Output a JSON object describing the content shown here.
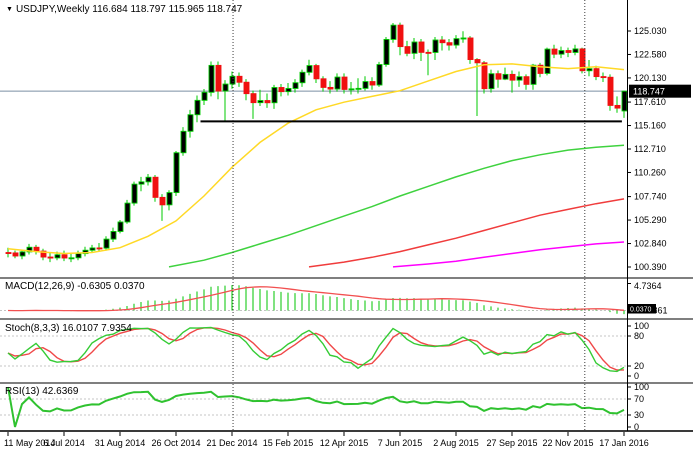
{
  "header": {
    "title": "USDJPY,Weekly  116.684 118.797 115.965 118.747",
    "dropdown_icon": "symbol-list-dropdown"
  },
  "colors": {
    "bull_body": "#000000",
    "bear_body": "#f01010",
    "candle_outline": "#00cb00",
    "wick": "#00cb00",
    "ma_yellow": "#ffd926",
    "ma_green": "#3fd23f",
    "ma_red": "#f03c3c",
    "ma_magenta": "#ff00ff",
    "hist": "#00c400",
    "macd_signal": "#f25050",
    "stoch_k": "#35cc35",
    "stoch_d": "#f04848",
    "rsi_line": "#2fc22f",
    "price_line": "#7b8fa3",
    "badge_bg": "#000000",
    "badge_text": "#ffffff",
    "panel_border": "#7f7f7f",
    "axis_line": "#000000",
    "level_dash": "#c4c4c4",
    "separator_dash": "#3c3c3c"
  },
  "chart_data": {
    "type": "candlestick",
    "title": "USDJPY,Weekly",
    "legend": [
      "candles USDJPY weekly",
      "MA yellow",
      "MA green",
      "MA red",
      "MA magenta"
    ],
    "x_ticks": {
      "labels": [
        "11 May 2014",
        "6 Jul 2014",
        "31 Aug 2014",
        "26 Oct 2014",
        "21 Dec 2014",
        "15 Feb 2015",
        "12 Apr 2015",
        "7 Jun 2015",
        "2 Aug 2015",
        "27 Sep 2015",
        "22 Nov 2015",
        "17 Jan 2016"
      ],
      "indices": [
        0,
        8,
        16,
        24,
        32,
        40,
        48,
        56,
        64,
        72,
        80,
        88
      ]
    },
    "main": {
      "price_ticks": [
        "125.030",
        "122.580",
        "120.130",
        "117.610",
        "115.160",
        "112.710",
        "110.260",
        "107.740",
        "105.290",
        "102.840",
        "100.390"
      ],
      "current_price": "118.747",
      "ohlc_line": "116.684 118.797 115.965 118.747",
      "trendline": {
        "price": 115.6,
        "from_index": 27.5,
        "to_index": 87.7
      },
      "separators_index": [
        32.15,
        82.4
      ],
      "candles": [
        [
          101.9,
          102.4,
          101.4,
          101.86
        ],
        [
          101.86,
          102.1,
          101.3,
          101.54
        ],
        [
          101.54,
          102.2,
          101.2,
          101.97
        ],
        [
          101.97,
          102.8,
          101.7,
          102.45
        ],
        [
          102.45,
          102.7,
          101.7,
          102.05
        ],
        [
          102.05,
          102.3,
          101.1,
          101.43
        ],
        [
          101.43,
          101.9,
          100.9,
          101.34
        ],
        [
          101.34,
          102.0,
          101.1,
          101.67
        ],
        [
          101.67,
          102.1,
          101.0,
          101.33
        ],
        [
          101.33,
          101.8,
          100.9,
          101.35
        ],
        [
          101.35,
          102.1,
          101.1,
          101.79
        ],
        [
          101.79,
          102.5,
          101.5,
          102.14
        ],
        [
          102.14,
          102.7,
          101.9,
          102.38
        ],
        [
          102.38,
          102.9,
          102.0,
          102.36
        ],
        [
          102.36,
          103.6,
          102.1,
          103.3
        ],
        [
          103.3,
          104.5,
          103.0,
          104.1
        ],
        [
          104.1,
          105.3,
          103.9,
          105.09
        ],
        [
          105.09,
          107.4,
          104.9,
          107.06
        ],
        [
          107.06,
          109.3,
          106.8,
          109.04
        ],
        [
          109.04,
          109.8,
          108.3,
          109.28
        ],
        [
          109.28,
          110.1,
          108.9,
          109.76
        ],
        [
          109.76,
          110.0,
          107.2,
          107.66
        ],
        [
          107.66,
          108.0,
          105.2,
          106.88
        ],
        [
          106.88,
          108.4,
          106.3,
          108.16
        ],
        [
          108.16,
          112.5,
          107.8,
          112.32
        ],
        [
          112.32,
          115.0,
          112.0,
          114.56
        ],
        [
          114.56,
          116.8,
          113.9,
          116.29
        ],
        [
          116.29,
          118.3,
          115.5,
          117.79
        ],
        [
          117.79,
          118.98,
          117.3,
          118.63
        ],
        [
          118.63,
          121.84,
          118.2,
          121.44
        ],
        [
          121.44,
          121.85,
          117.9,
          118.76
        ],
        [
          118.76,
          119.9,
          115.56,
          119.49
        ],
        [
          119.49,
          120.8,
          119.0,
          120.3
        ],
        [
          120.3,
          120.7,
          119.2,
          119.68
        ],
        [
          119.68,
          120.0,
          117.8,
          118.49
        ],
        [
          118.49,
          118.8,
          115.85,
          117.55
        ],
        [
          117.55,
          118.9,
          117.2,
          117.77
        ],
        [
          117.77,
          118.5,
          117.0,
          117.54
        ],
        [
          117.54,
          119.4,
          116.9,
          119.13
        ],
        [
          119.13,
          119.5,
          118.2,
          118.7
        ],
        [
          118.7,
          119.6,
          118.3,
          119.03
        ],
        [
          119.03,
          120.0,
          118.6,
          119.63
        ],
        [
          119.63,
          121.0,
          119.2,
          120.72
        ],
        [
          120.72,
          122.03,
          120.4,
          121.42
        ],
        [
          121.42,
          121.6,
          119.6,
          120.04
        ],
        [
          120.04,
          120.3,
          118.7,
          119.14
        ],
        [
          119.14,
          119.8,
          118.5,
          118.97
        ],
        [
          118.97,
          120.6,
          118.7,
          120.22
        ],
        [
          120.22,
          120.6,
          118.5,
          118.93
        ],
        [
          118.93,
          119.7,
          118.4,
          118.99
        ],
        [
          118.99,
          120.1,
          118.5,
          119.04
        ],
        [
          119.04,
          120.3,
          118.8,
          119.75
        ],
        [
          119.75,
          120.2,
          118.9,
          119.39
        ],
        [
          119.39,
          121.8,
          119.2,
          121.53
        ],
        [
          121.53,
          124.4,
          121.3,
          124.15
        ],
        [
          124.15,
          125.86,
          123.8,
          125.64
        ],
        [
          125.64,
          125.9,
          122.5,
          123.4
        ],
        [
          123.4,
          124.0,
          122.4,
          122.7
        ],
        [
          122.7,
          124.3,
          122.1,
          123.88
        ],
        [
          123.88,
          124.2,
          121.9,
          122.8
        ],
        [
          122.8,
          123.1,
          120.41,
          122.79
        ],
        [
          122.79,
          124.4,
          122.0,
          124.09
        ],
        [
          124.09,
          124.5,
          123.0,
          123.81
        ],
        [
          123.81,
          124.2,
          123.0,
          123.56
        ],
        [
          123.56,
          124.6,
          123.2,
          124.23
        ],
        [
          124.23,
          125.0,
          123.8,
          124.3
        ],
        [
          124.3,
          124.5,
          121.6,
          122.05
        ],
        [
          122.05,
          122.2,
          116.15,
          121.71
        ],
        [
          121.71,
          121.9,
          118.5,
          119.01
        ],
        [
          119.01,
          121.0,
          118.6,
          120.57
        ],
        [
          120.57,
          120.9,
          119.1,
          120.0
        ],
        [
          120.0,
          121.2,
          119.9,
          120.5
        ],
        [
          120.5,
          120.9,
          118.6,
          119.9
        ],
        [
          119.9,
          120.8,
          119.2,
          120.26
        ],
        [
          120.26,
          120.5,
          118.9,
          119.46
        ],
        [
          119.46,
          121.6,
          118.9,
          121.46
        ],
        [
          121.46,
          121.7,
          120.2,
          120.6
        ],
        [
          120.6,
          123.3,
          120.4,
          123.14
        ],
        [
          123.14,
          123.6,
          122.2,
          122.61
        ],
        [
          122.61,
          123.4,
          122.2,
          122.99
        ],
        [
          122.99,
          123.3,
          122.3,
          122.79
        ],
        [
          122.79,
          123.6,
          122.5,
          123.16
        ],
        [
          123.16,
          123.3,
          120.6,
          120.88
        ],
        [
          120.88,
          122.0,
          120.3,
          121.1
        ],
        [
          121.1,
          121.4,
          119.9,
          120.27
        ],
        [
          120.27,
          120.7,
          119.7,
          120.2
        ],
        [
          120.2,
          120.5,
          116.7,
          117.26
        ],
        [
          117.26,
          118.2,
          116.5,
          116.98
        ],
        [
          116.684,
          118.797,
          115.965,
          118.747
        ]
      ],
      "mas": {
        "yellow": [
          [
            0,
            102.3
          ],
          [
            4,
            102.0
          ],
          [
            8,
            101.8
          ],
          [
            12,
            101.9
          ],
          [
            16,
            102.4
          ],
          [
            20,
            103.6
          ],
          [
            24,
            105.2
          ],
          [
            28,
            107.8
          ],
          [
            32,
            110.8
          ],
          [
            36,
            113.4
          ],
          [
            40,
            115.4
          ],
          [
            44,
            116.8
          ],
          [
            48,
            117.6
          ],
          [
            52,
            118.2
          ],
          [
            56,
            118.8
          ],
          [
            60,
            119.8
          ],
          [
            64,
            120.8
          ],
          [
            68,
            121.5
          ],
          [
            72,
            121.6
          ],
          [
            76,
            121.3
          ],
          [
            80,
            121.1
          ],
          [
            84,
            121.3
          ],
          [
            88,
            121.0
          ]
        ],
        "green": [
          [
            23,
            100.4
          ],
          [
            28,
            101.1
          ],
          [
            32,
            101.9
          ],
          [
            36,
            102.8
          ],
          [
            40,
            103.7
          ],
          [
            44,
            104.7
          ],
          [
            48,
            105.7
          ],
          [
            52,
            106.7
          ],
          [
            56,
            107.8
          ],
          [
            60,
            108.8
          ],
          [
            64,
            109.8
          ],
          [
            68,
            110.7
          ],
          [
            72,
            111.5
          ],
          [
            76,
            112.1
          ],
          [
            80,
            112.6
          ],
          [
            84,
            112.9
          ],
          [
            88,
            113.1
          ]
        ],
        "red": [
          [
            43,
            100.4
          ],
          [
            48,
            100.9
          ],
          [
            52,
            101.4
          ],
          [
            56,
            102.0
          ],
          [
            60,
            102.7
          ],
          [
            64,
            103.4
          ],
          [
            68,
            104.2
          ],
          [
            72,
            105.0
          ],
          [
            76,
            105.8
          ],
          [
            80,
            106.4
          ],
          [
            84,
            107.0
          ],
          [
            88,
            107.5
          ]
        ],
        "magenta": [
          [
            55,
            100.4
          ],
          [
            60,
            100.7
          ],
          [
            64,
            101.0
          ],
          [
            68,
            101.4
          ],
          [
            72,
            101.8
          ],
          [
            76,
            102.2
          ],
          [
            80,
            102.5
          ],
          [
            84,
            102.8
          ],
          [
            88,
            103.0
          ]
        ]
      }
    },
    "macd": {
      "label": "MACD(12,26,9) -0.6305 0.0370",
      "params": [
        12,
        26,
        9
      ],
      "current_macd": "-0.6305",
      "current_signal": "0.0370",
      "scale_max": "4.7364",
      "scale_min": "0.0861",
      "badge_value": "0.0370"
    },
    "stoch": {
      "label": "Stoch(8,3,3) 16.0107 7.9354",
      "params": [
        8,
        3,
        3
      ],
      "current_k": "16.0107",
      "current_d": "7.9354",
      "levels": [
        80,
        20
      ],
      "scale_labels": [
        100,
        80,
        20,
        0
      ]
    },
    "rsi": {
      "label": "RSI(13) 42.6369",
      "period": 13,
      "current": "42.6369",
      "levels": [
        70,
        30
      ],
      "scale_labels": [
        100,
        70,
        30,
        0
      ]
    }
  }
}
